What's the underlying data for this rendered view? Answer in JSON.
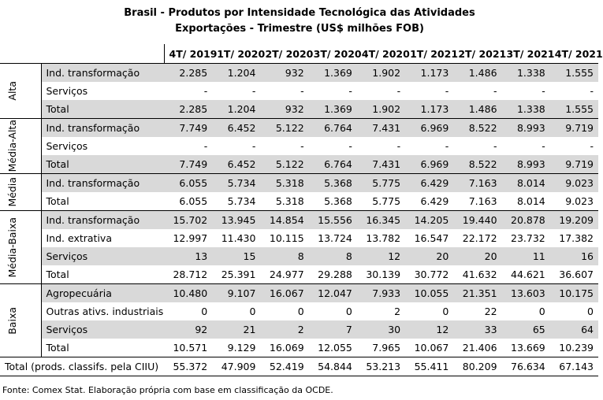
{
  "title": "Brasil - Produtos por Intensidade Tecnológica das Atividades",
  "subtitle": "Exportações - Trimestre (US$ milhões FOB)",
  "columns": [
    "4T/ 2019",
    "1T/ 2020",
    "2T/ 2020",
    "3T/ 2020",
    "4T/ 2020",
    "1T/ 2021",
    "2T/ 2021",
    "3T/ 2021",
    "4T/ 2021"
  ],
  "groups": [
    {
      "label": "Alta",
      "rows": [
        {
          "label": "Ind. transformação",
          "values": [
            "2.285",
            "1.204",
            "932",
            "1.369",
            "1.902",
            "1.173",
            "1.486",
            "1.338",
            "1.555"
          ]
        },
        {
          "label": "Serviços",
          "values": [
            "-",
            "-",
            "-",
            "-",
            "-",
            "-",
            "-",
            "-",
            "-"
          ]
        },
        {
          "label": "Total",
          "values": [
            "2.285",
            "1.204",
            "932",
            "1.369",
            "1.902",
            "1.173",
            "1.486",
            "1.338",
            "1.555"
          ]
        }
      ]
    },
    {
      "label": "Média-Alta",
      "rows": [
        {
          "label": "Ind. transformação",
          "values": [
            "7.749",
            "6.452",
            "5.122",
            "6.764",
            "7.431",
            "6.969",
            "8.522",
            "8.993",
            "9.719"
          ]
        },
        {
          "label": "Serviços",
          "values": [
            "-",
            "-",
            "-",
            "-",
            "-",
            "-",
            "-",
            "-",
            "-"
          ]
        },
        {
          "label": "Total",
          "values": [
            "7.749",
            "6.452",
            "5.122",
            "6.764",
            "7.431",
            "6.969",
            "8.522",
            "8.993",
            "9.719"
          ]
        }
      ]
    },
    {
      "label": "Média",
      "rows": [
        {
          "label": "Ind. transformação",
          "values": [
            "6.055",
            "5.734",
            "5.318",
            "5.368",
            "5.775",
            "6.429",
            "7.163",
            "8.014",
            "9.023"
          ]
        },
        {
          "label": "Total",
          "values": [
            "6.055",
            "5.734",
            "5.318",
            "5.368",
            "5.775",
            "6.429",
            "7.163",
            "8.014",
            "9.023"
          ]
        }
      ]
    },
    {
      "label": "Média-Baixa",
      "rows": [
        {
          "label": "Ind. transformação",
          "values": [
            "15.702",
            "13.945",
            "14.854",
            "15.556",
            "16.345",
            "14.205",
            "19.440",
            "20.878",
            "19.209"
          ]
        },
        {
          "label": "Ind. extrativa",
          "values": [
            "12.997",
            "11.430",
            "10.115",
            "13.724",
            "13.782",
            "16.547",
            "22.172",
            "23.732",
            "17.382"
          ]
        },
        {
          "label": "Serviços",
          "values": [
            "13",
            "15",
            "8",
            "8",
            "12",
            "20",
            "20",
            "11",
            "16"
          ]
        },
        {
          "label": "Total",
          "values": [
            "28.712",
            "25.391",
            "24.977",
            "29.288",
            "30.139",
            "30.772",
            "41.632",
            "44.621",
            "36.607"
          ]
        }
      ]
    },
    {
      "label": "Baixa",
      "rows": [
        {
          "label": "Agropecuária",
          "values": [
            "10.480",
            "9.107",
            "16.067",
            "12.047",
            "7.933",
            "10.055",
            "21.351",
            "13.603",
            "10.175"
          ]
        },
        {
          "label": "Outras ativs. industriais",
          "values": [
            "0",
            "0",
            "0",
            "0",
            "2",
            "0",
            "22",
            "0",
            "0"
          ]
        },
        {
          "label": "Serviços",
          "values": [
            "92",
            "21",
            "2",
            "7",
            "30",
            "12",
            "33",
            "65",
            "64"
          ]
        },
        {
          "label": "Total",
          "values": [
            "10.571",
            "9.129",
            "16.069",
            "12.055",
            "7.965",
            "10.067",
            "21.406",
            "13.669",
            "10.239"
          ]
        }
      ]
    }
  ],
  "total": {
    "label": "Total (prods. classifs. pela CIIU)",
    "values": [
      "55.372",
      "47.909",
      "52.419",
      "54.844",
      "53.213",
      "55.411",
      "80.209",
      "76.634",
      "67.143"
    ]
  },
  "footer": "Fonte: Comex Stat. Elaboração própria com base em classificação da OCDE."
}
